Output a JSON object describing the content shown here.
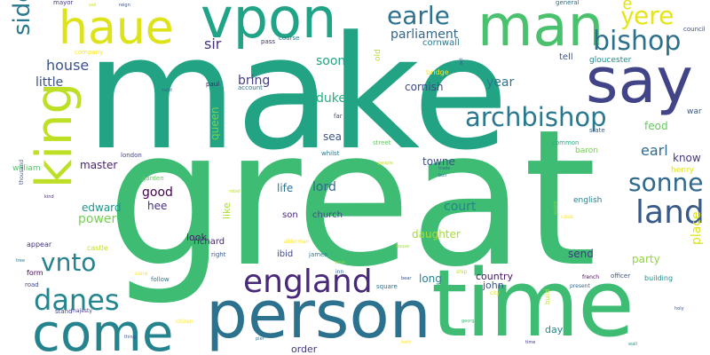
{
  "words": [
    {
      "text": "make",
      "color": "#22a384"
    },
    {
      "text": "great",
      "color": "#3fbc73"
    },
    {
      "text": "time",
      "color": "#3fbc73"
    },
    {
      "text": "person",
      "color": "#2c718e"
    },
    {
      "text": "come",
      "color": "#25838e"
    },
    {
      "text": "vpon",
      "color": "#20a386"
    },
    {
      "text": "man",
      "color": "#4ac16d"
    },
    {
      "text": "say",
      "color": "#414487"
    },
    {
      "text": "haue",
      "color": "#dde318"
    },
    {
      "text": "king",
      "color": "#bddf26"
    },
    {
      "text": "bishop",
      "color": "#2d708e"
    },
    {
      "text": "archbishop",
      "color": "#2a788e"
    },
    {
      "text": "earle",
      "color": "#2c728e"
    },
    {
      "text": "yͤere",
      "color": "#e5e419"
    },
    {
      "text": "england",
      "color": "#482878"
    },
    {
      "text": "land",
      "color": "#38598c"
    },
    {
      "text": "sonne",
      "color": "#31688e"
    },
    {
      "text": "danes",
      "color": "#25858e"
    },
    {
      "text": "vnto",
      "color": "#26828e"
    },
    {
      "text": "sidenote",
      "color": "#2a788e"
    },
    {
      "text": "parliament",
      "color": "#31688e"
    },
    {
      "text": "house",
      "color": "#3b528b"
    },
    {
      "text": "sir",
      "color": "#46327e"
    },
    {
      "text": "soone",
      "color": "#20a386"
    },
    {
      "text": "little",
      "color": "#3a538b"
    },
    {
      "text": "bring",
      "color": "#433e85"
    },
    {
      "text": "duke",
      "color": "#26ad81"
    },
    {
      "text": "year",
      "color": "#2a778e"
    },
    {
      "text": "cornish",
      "color": "#3e4989"
    },
    {
      "text": "earl",
      "color": "#2f6c8e"
    },
    {
      "text": "know",
      "color": "#453781"
    },
    {
      "text": "feod",
      "color": "#65cb5e"
    },
    {
      "text": "sea",
      "color": "#39568c"
    },
    {
      "text": "queen",
      "color": "#7ad151"
    },
    {
      "text": "good",
      "color": "#440154"
    },
    {
      "text": "hee",
      "color": "#472d7b"
    },
    {
      "text": "lord",
      "color": "#31688e"
    },
    {
      "text": "life",
      "color": "#2c728e"
    },
    {
      "text": "towne",
      "color": "#3b528b"
    },
    {
      "text": "court",
      "color": "#25858e"
    },
    {
      "text": "master",
      "color": "#481f70"
    },
    {
      "text": "edward",
      "color": "#1f968b"
    },
    {
      "text": "power",
      "color": "#75d054"
    },
    {
      "text": "look",
      "color": "#481668"
    },
    {
      "text": "richard",
      "color": "#482475"
    },
    {
      "text": "church",
      "color": "#3e4a89"
    },
    {
      "text": "son",
      "color": "#482979"
    },
    {
      "text": "daughter",
      "color": "#a5db36"
    },
    {
      "text": "send",
      "color": "#453882"
    },
    {
      "text": "place",
      "color": "#dde318"
    },
    {
      "text": "party",
      "color": "#90d743"
    },
    {
      "text": "ibid",
      "color": "#3f4788"
    },
    {
      "text": "long",
      "color": "#26828e"
    },
    {
      "text": "country",
      "color": "#481668"
    },
    {
      "text": "john",
      "color": "#3a548c"
    },
    {
      "text": "day",
      "color": "#24868e"
    },
    {
      "text": "order",
      "color": "#453781"
    },
    {
      "text": "like",
      "color": "#addc30"
    },
    {
      "text": "cornwall",
      "color": "#2a788e"
    },
    {
      "text": "tell",
      "color": "#3b528b"
    },
    {
      "text": "gloucester",
      "color": "#24868e"
    },
    {
      "text": "english",
      "color": "#26828e"
    },
    {
      "text": "baron",
      "color": "#75d054"
    },
    {
      "text": "war",
      "color": "#38598c"
    },
    {
      "text": "henry",
      "color": "#e2e418"
    },
    {
      "text": "william",
      "color": "#54c568"
    },
    {
      "text": "old",
      "color": "#b5de2b"
    },
    {
      "text": "bridge",
      "color": "#fde725"
    },
    {
      "text": "mayor",
      "color": "#443983"
    },
    {
      "text": "pass",
      "color": "#46337f"
    },
    {
      "text": "course",
      "color": "#2a788e"
    },
    {
      "text": "general",
      "color": "#2d708e"
    },
    {
      "text": "council",
      "color": "#3a548c"
    },
    {
      "text": "company",
      "color": "#fde725"
    },
    {
      "text": "paul",
      "color": "#482071"
    },
    {
      "text": "account",
      "color": "#2c728e"
    },
    {
      "text": "far",
      "color": "#3e4a89"
    },
    {
      "text": "street",
      "color": "#5ec962"
    },
    {
      "text": "london",
      "color": "#414487"
    },
    {
      "text": "whilst",
      "color": "#2a788e"
    },
    {
      "text": "common",
      "color": "#25ab82"
    },
    {
      "text": "state",
      "color": "#355f8d"
    },
    {
      "text": "garden",
      "color": "#5ec962"
    },
    {
      "text": "thousand",
      "color": "#3b528b"
    },
    {
      "text": "appear",
      "color": "#46327e"
    },
    {
      "text": "form",
      "color": "#440154"
    },
    {
      "text": "castle",
      "color": "#c8e020"
    },
    {
      "text": "right",
      "color": "#39568c"
    },
    {
      "text": "james",
      "color": "#287d8e"
    },
    {
      "text": "road",
      "color": "#3e4989"
    },
    {
      "text": "follow",
      "color": "#2a788e"
    },
    {
      "text": "square",
      "color": "#2c728e"
    },
    {
      "text": "build",
      "color": "#c2df23"
    },
    {
      "text": "officer",
      "color": "#3b528b"
    },
    {
      "text": "building",
      "color": "#21918c"
    },
    {
      "text": "french",
      "color": "#46085c"
    },
    {
      "text": "stand",
      "color": "#3e4989"
    },
    {
      "text": "majesty",
      "color": "#443a83"
    },
    {
      "text": "citizen",
      "color": "#fde725"
    },
    {
      "text": "city",
      "color": "#e5e419"
    },
    {
      "text": "point",
      "color": "#86d549"
    },
    {
      "text": "case",
      "color": "#fde725"
    },
    {
      "text": "inn",
      "color": "#355f8d"
    },
    {
      "text": "sane",
      "color": "#fde725"
    },
    {
      "text": "alderman",
      "color": "#fde725"
    },
    {
      "text": "house",
      "color": "#9fda3a"
    },
    {
      "text": "ship",
      "color": "#c0df25"
    },
    {
      "text": "george",
      "color": "#3aba76"
    },
    {
      "text": "present",
      "color": "#31688e"
    },
    {
      "text": "sail",
      "color": "#d2e21b"
    },
    {
      "text": "reign",
      "color": "#3b528b"
    },
    {
      "text": "pier",
      "color": "#2c728e"
    },
    {
      "text": "act",
      "color": "#3b528b"
    },
    {
      "text": "trade",
      "color": "#31688e"
    },
    {
      "text": "people",
      "color": "#c8e020"
    },
    {
      "text": "bell",
      "color": "#2a788e"
    },
    {
      "text": "tree",
      "color": "#2a788e"
    },
    {
      "text": "bear",
      "color": "#3b528b"
    },
    {
      "text": "lane",
      "color": "#8fd744"
    },
    {
      "text": "kind",
      "color": "#482878"
    },
    {
      "text": "holy",
      "color": "#3b528b"
    },
    {
      "text": "wall",
      "color": "#1f9e89"
    },
    {
      "text": "time",
      "color": "#46327e"
    },
    {
      "text": "hath",
      "color": "#fde725"
    },
    {
      "text": "rebel",
      "color": "#c0df25"
    },
    {
      "text": "thing",
      "color": "#3b528b"
    },
    {
      "text": "saint",
      "color": "#31688e"
    }
  ]
}
